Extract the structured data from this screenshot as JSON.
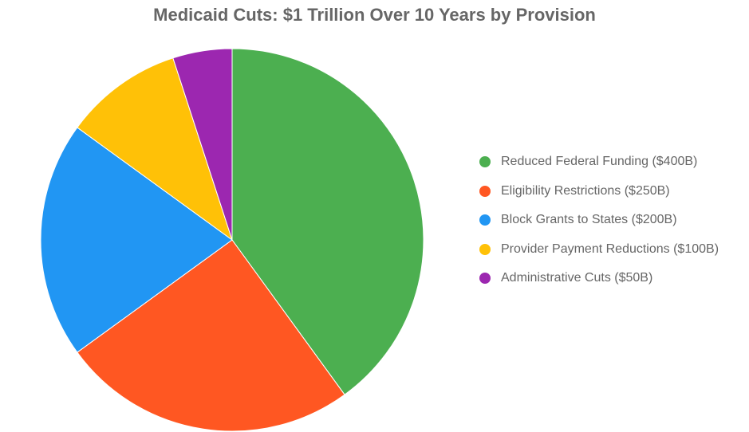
{
  "chart_data": {
    "type": "pie",
    "title": "Medicaid Cuts: $1 Trillion Over 10 Years by Provision",
    "legend_position": "right",
    "slices": [
      {
        "label": "Reduced Federal Funding",
        "value": 400,
        "legend": "Reduced Federal Funding ($400B)",
        "color": "#4CAF50"
      },
      {
        "label": "Eligibility Restrictions",
        "value": 250,
        "legend": "Eligibility Restrictions ($250B)",
        "color": "#FF5722"
      },
      {
        "label": "Block Grants to States",
        "value": 200,
        "legend": "Block Grants to States ($200B)",
        "color": "#2196F3"
      },
      {
        "label": "Provider Payment Reductions",
        "value": 100,
        "legend": "Provider Payment Reductions ($100B)",
        "color": "#FFC107"
      },
      {
        "label": "Administrative Cuts",
        "value": 50,
        "legend": "Administrative Cuts ($50B)",
        "color": "#9C27B0"
      }
    ]
  }
}
